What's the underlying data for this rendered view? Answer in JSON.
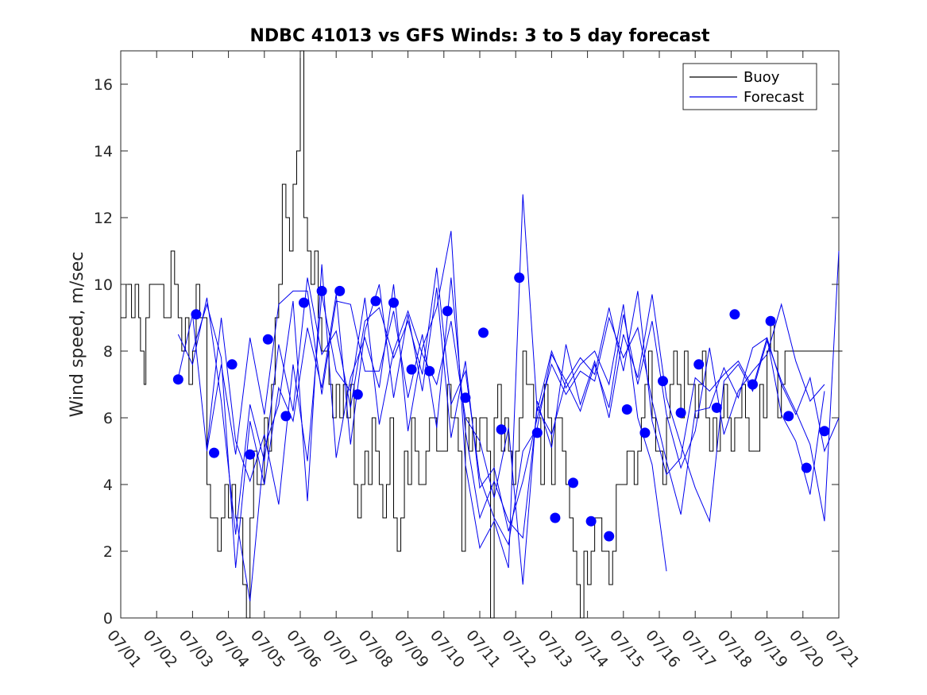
{
  "chart_data": {
    "type": "line",
    "title": "NDBC 41013 vs GFS Winds: 3 to 5 day forecast",
    "ylabel": "Wind speed, m/sec",
    "xlabel": "",
    "ylim": [
      0,
      17
    ],
    "yticks": [
      0,
      2,
      4,
      6,
      8,
      10,
      12,
      14,
      16
    ],
    "xlim": [
      "07/01",
      "07/21"
    ],
    "xticks": [
      "07/01",
      "07/02",
      "07/03",
      "07/04",
      "07/05",
      "07/06",
      "07/07",
      "07/08",
      "07/09",
      "07/10",
      "07/11",
      "07/12",
      "07/13",
      "07/14",
      "07/15",
      "07/16",
      "07/17",
      "07/18",
      "07/19",
      "07/20",
      "07/21"
    ],
    "grid": false,
    "legend": {
      "position": "top-right",
      "entries": [
        "Buoy",
        "Forecast"
      ]
    },
    "colors": {
      "buoy": "#000000",
      "forecast": "#0000ee",
      "marker": "#0000ff"
    },
    "buoy": {
      "name": "Buoy",
      "x_day_offset": [
        0.0,
        0.15,
        0.3,
        0.4,
        0.5,
        0.55,
        0.65,
        0.7,
        0.8,
        1.0,
        1.2,
        1.4,
        1.5,
        1.6,
        1.7,
        1.8,
        1.9,
        2.0,
        2.1,
        2.2,
        2.3,
        2.4,
        2.5,
        2.6,
        2.7,
        2.8,
        2.9,
        3.0,
        3.1,
        3.2,
        3.3,
        3.4,
        3.5,
        3.6,
        3.7,
        3.8,
        3.9,
        4.0,
        4.1,
        4.2,
        4.3,
        4.4,
        4.5,
        4.6,
        4.7,
        4.8,
        4.9,
        5.0,
        5.1,
        5.2,
        5.3,
        5.4,
        5.5,
        5.6,
        5.7,
        5.8,
        5.9,
        6.0,
        6.1,
        6.2,
        6.3,
        6.4,
        6.5,
        6.6,
        6.7,
        6.8,
        6.9,
        7.0,
        7.1,
        7.2,
        7.3,
        7.4,
        7.5,
        7.6,
        7.7,
        7.8,
        7.9,
        8.0,
        8.1,
        8.2,
        8.3,
        8.4,
        8.5,
        8.6,
        8.7,
        8.8,
        8.9,
        9.0,
        9.1,
        9.2,
        9.3,
        9.4,
        9.5,
        9.6,
        9.7,
        9.8,
        9.9,
        10.0,
        10.1,
        10.2,
        10.3,
        10.4,
        10.5,
        10.6,
        10.7,
        10.8,
        10.9,
        11.0,
        11.1,
        11.2,
        11.3,
        11.4,
        11.5,
        11.6,
        11.7,
        11.8,
        11.9,
        12.0,
        12.1,
        12.2,
        12.3,
        12.4,
        12.5,
        12.6,
        12.7,
        12.8,
        12.9,
        13.0,
        13.1,
        13.2,
        13.3,
        13.4,
        13.5,
        13.6,
        13.7,
        13.8,
        13.9,
        14.0,
        14.1,
        14.2,
        14.3,
        14.4,
        14.5,
        14.6,
        14.7,
        14.8,
        14.9,
        15.0,
        15.1,
        15.2,
        15.3,
        15.4,
        15.5,
        15.6,
        15.7,
        15.8,
        15.9,
        16.0,
        16.1,
        16.2,
        16.3,
        16.4,
        16.5,
        16.6,
        16.7,
        16.8,
        16.9,
        17.0,
        17.1,
        17.2,
        17.3,
        17.4,
        17.5,
        17.6,
        17.7,
        17.8,
        17.9,
        18.0,
        18.1,
        18.2,
        18.3,
        18.4,
        18.5,
        18.6,
        18.7,
        18.8,
        18.9,
        19.0,
        19.1,
        19.2,
        19.3,
        19.4,
        19.5,
        19.6,
        19.7,
        19.8,
        19.9,
        20.0
      ],
      "values": [
        9,
        10,
        9,
        10,
        9,
        8,
        7,
        9,
        10,
        10,
        9,
        11,
        10,
        9,
        8,
        9,
        7,
        8,
        10,
        9,
        9,
        4,
        3,
        3,
        2,
        3,
        4,
        3,
        4,
        3,
        3,
        1,
        0,
        3,
        5,
        4,
        4,
        6,
        5,
        7,
        9,
        10,
        13,
        12,
        11,
        13,
        14,
        17,
        12,
        11,
        10,
        11,
        9,
        8,
        8,
        7,
        6,
        7,
        6,
        7,
        6,
        7,
        4,
        3,
        4,
        5,
        4,
        6,
        5,
        4,
        3,
        4,
        6,
        3,
        2,
        3,
        5,
        4,
        6,
        5,
        4,
        4,
        5,
        6,
        6,
        5,
        5,
        5,
        7,
        6,
        6,
        5,
        2,
        6,
        5,
        6,
        5,
        6,
        6,
        5,
        0,
        6,
        7,
        5,
        6,
        5,
        4,
        5,
        6,
        8,
        7,
        7,
        6,
        6,
        4,
        7,
        6,
        4,
        6,
        6,
        5,
        4,
        3,
        2,
        1,
        0,
        2,
        1,
        2,
        3,
        3,
        2,
        2,
        1,
        2,
        4,
        4,
        4,
        5,
        5,
        4,
        5,
        6,
        7,
        8,
        6,
        5,
        5,
        4,
        6,
        7,
        8,
        7,
        6,
        8,
        7,
        7,
        6,
        7,
        8,
        6,
        5,
        6,
        5,
        6,
        7,
        6,
        5,
        6,
        6,
        7,
        6,
        5,
        5,
        5,
        7,
        6,
        8,
        9,
        8,
        6,
        7,
        8
      ]
    },
    "forecast": {
      "name": "Forecast",
      "lines": [
        {
          "x_day_offset": [
            1.6,
            2.0,
            2.4,
            2.8,
            3.2,
            3.6,
            4.0,
            4.4,
            4.8,
            5.2,
            5.6,
            6.0,
            6.4,
            6.8,
            7.2,
            7.6,
            8.0,
            8.4,
            8.8,
            9.2,
            9.6,
            10.0,
            10.4,
            10.8,
            11.2,
            11.6,
            12.0,
            12.4,
            12.8,
            13.2,
            13.6,
            14.0,
            14.4,
            14.8,
            15.2,
            15.6,
            16.0,
            16.4,
            16.8,
            17.2,
            17.6,
            18.0,
            18.4,
            18.8,
            19.2,
            19.6
          ],
          "values": [
            7.2,
            9.1,
            5.0,
            7.6,
            4.9,
            8.4,
            6.1,
            9.4,
            9.8,
            9.8,
            6.7,
            9.5,
            9.4,
            7.4,
            7.4,
            9.2,
            6.6,
            8.5,
            5.7,
            10.2,
            5.6,
            3.0,
            4.1,
            2.9,
            2.4,
            6.3,
            5.5,
            7.1,
            6.2,
            7.6,
            6.3,
            9.1,
            7.0,
            8.9,
            6.1,
            4.5,
            5.6,
            8.1,
            5.5,
            6.8,
            7.4,
            7.9,
            9.4,
            7.7,
            6.5,
            7.0
          ]
        },
        {
          "x_day_offset": [
            1.6,
            2.0,
            2.4,
            2.8,
            3.2,
            3.6,
            4.0,
            4.4,
            4.8,
            5.2,
            5.6,
            6.0,
            6.4,
            6.8,
            7.2,
            7.6,
            8.0,
            8.4,
            8.8,
            9.2,
            9.6,
            10.0,
            10.4,
            10.8,
            11.2,
            11.6,
            12.0,
            12.4,
            12.8,
            13.2,
            13.6,
            14.0,
            14.4,
            14.8,
            15.2,
            15.6,
            16.0,
            16.4,
            16.8,
            17.2,
            17.6,
            18.0,
            18.4,
            18.8,
            19.2,
            19.6
          ],
          "values": [
            8.5,
            7.6,
            9.6,
            6.5,
            2.5,
            6.4,
            4.7,
            8.2,
            6.2,
            10.2,
            7.9,
            8.6,
            6.3,
            8.9,
            9.3,
            7.8,
            8.9,
            7.3,
            10.5,
            6.4,
            7.4,
            4.2,
            3.0,
            2.2,
            5.0,
            5.7,
            7.9,
            7.1,
            7.8,
            7.3,
            9.3,
            7.4,
            9.8,
            5.9,
            4.3,
            4.8,
            7.2,
            6.8,
            7.3,
            7.7,
            6.9,
            8.4,
            6.1,
            5.3,
            3.7,
            6.8
          ]
        },
        {
          "x_day_offset": [
            2.0,
            2.4,
            2.8,
            3.2,
            3.6,
            4.0,
            4.4,
            4.8,
            5.2,
            5.6,
            6.0,
            6.4,
            6.8,
            7.2,
            7.6,
            8.0,
            8.4,
            8.8,
            9.2,
            9.6,
            10.0,
            10.4,
            10.8,
            11.2,
            11.6,
            12.0,
            12.4,
            12.8,
            13.2,
            13.6,
            14.0,
            14.4,
            14.8,
            15.2,
            15.6,
            16.0,
            16.4,
            16.8,
            17.2,
            17.6,
            18.0,
            18.4,
            18.8,
            19.2,
            19.6,
            20.0
          ],
          "values": [
            8.0,
            9.4,
            7.8,
            1.5,
            5.9,
            4.0,
            6.9,
            5.9,
            8.7,
            6.9,
            9.7,
            5.2,
            8.6,
            10.0,
            6.6,
            9.1,
            6.8,
            9.9,
            5.4,
            7.7,
            3.9,
            4.5,
            2.6,
            4.1,
            6.0,
            7.6,
            6.7,
            7.4,
            7.1,
            9.0,
            7.8,
            8.7,
            6.5,
            4.7,
            3.1,
            6.2,
            6.3,
            7.5,
            6.6,
            8.1,
            8.4,
            7.0,
            6.1,
            7.2,
            5.0,
            6.0
          ]
        },
        {
          "x_day_offset": [
            2.4,
            2.8,
            3.2,
            3.6,
            4.0,
            4.4,
            4.8,
            5.2,
            5.6,
            6.0,
            6.4,
            6.8,
            7.2,
            7.6,
            8.0,
            8.4,
            8.8,
            9.2,
            9.6,
            10.0,
            10.4,
            10.8,
            11.2,
            11.6,
            12.0,
            12.4,
            12.8,
            13.2,
            13.6,
            14.0,
            14.4,
            14.8,
            15.2,
            15.6,
            16.0,
            16.4,
            16.8,
            17.2,
            17.6,
            18.0,
            18.4,
            18.8,
            19.2,
            19.6,
            20.0
          ],
          "values": [
            5.1,
            9.0,
            5.3,
            4.1,
            5.5,
            3.4,
            7.6,
            4.7,
            9.7,
            7.4,
            6.8,
            9.6,
            5.8,
            8.0,
            9.2,
            7.9,
            7.0,
            8.9,
            6.0,
            5.3,
            3.6,
            5.7,
            1.0,
            6.5,
            5.1,
            8.2,
            6.4,
            7.7,
            6.0,
            8.5,
            7.2,
            9.7,
            6.6,
            5.2,
            3.9,
            2.9,
            7.1,
            7.6,
            6.8,
            8.3,
            7.1,
            6.2,
            5.2,
            2.9,
            11.0
          ]
        },
        {
          "x_day_offset": [
            3.2,
            3.6,
            4.0,
            4.4,
            4.8,
            5.2,
            5.6,
            6.0,
            6.4,
            6.8,
            7.2,
            7.6,
            8.0,
            8.4,
            8.8,
            9.2,
            9.6,
            10.0,
            10.4,
            10.8,
            11.2,
            11.6,
            12.0,
            12.4,
            12.8,
            13.2,
            13.6,
            14.0,
            14.4,
            14.8,
            15.2
          ],
          "values": [
            3.1,
            0.5,
            5.1,
            6.4,
            9.5,
            3.5,
            10.6,
            4.8,
            7.2,
            8.4,
            6.9,
            10.0,
            5.6,
            8.1,
            9.3,
            11.6,
            4.6,
            2.1,
            2.9,
            1.5,
            12.7,
            6.2,
            8.0,
            6.9,
            7.6,
            8.0,
            7.0,
            9.4,
            6.0,
            4.6,
            1.4
          ]
        }
      ]
    },
    "markers": {
      "x_day_offset": [
        1.6,
        2.1,
        2.6,
        3.1,
        3.6,
        4.1,
        4.6,
        5.1,
        5.6,
        6.1,
        6.6,
        7.1,
        7.6,
        8.1,
        8.6,
        9.1,
        9.6,
        10.1,
        10.6,
        11.1,
        11.6,
        12.1,
        12.6,
        13.1,
        13.6,
        14.1,
        14.6,
        15.1,
        15.6,
        16.1,
        16.6,
        17.1,
        17.6,
        18.1,
        18.6,
        19.1,
        19.6
      ],
      "values": [
        7.15,
        9.1,
        4.95,
        7.6,
        4.9,
        8.35,
        6.05,
        9.45,
        9.8,
        9.8,
        6.7,
        9.5,
        9.45,
        7.45,
        7.4,
        9.2,
        6.6,
        8.55,
        5.65,
        10.2,
        5.55,
        3.0,
        4.05,
        2.9,
        2.45,
        6.25,
        5.55,
        7.1,
        6.15,
        7.6,
        6.3,
        9.1,
        7.0,
        8.9,
        6.05,
        4.5,
        5.6
      ]
    }
  }
}
